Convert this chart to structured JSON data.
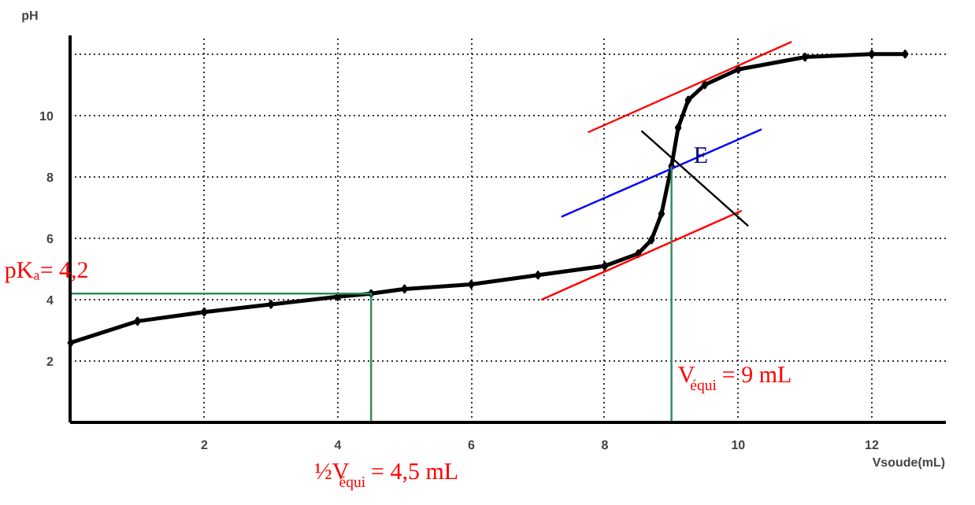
{
  "chart_data": {
    "type": "line",
    "xlabel": "Vsoude(mL)",
    "ylabel": "pH",
    "xlim": [
      0,
      13.1
    ],
    "ylim": [
      0,
      12.6
    ],
    "xticks": [
      2,
      4,
      6,
      8,
      10,
      12
    ],
    "yticks": [
      2,
      4,
      6,
      8,
      10,
      {
        "value": 12,
        "label": null
      }
    ],
    "grid": true,
    "marker": "diamond",
    "series": [
      {
        "color": "#000000",
        "x": [
          0,
          1,
          2,
          3,
          4,
          4.5,
          5,
          6,
          7,
          8,
          8.5,
          8.7,
          8.85,
          9,
          9.1,
          9.25,
          9.5,
          10,
          11,
          12,
          12.5
        ],
        "values": [
          2.6,
          3.3,
          3.6,
          3.85,
          4.1,
          4.2,
          4.35,
          4.5,
          4.8,
          5.1,
          5.5,
          5.95,
          6.8,
          8.35,
          9.6,
          10.5,
          11.0,
          11.5,
          11.9,
          12.0,
          12.0
        ]
      },
      {
        "color": "#ff0000",
        "type": "line",
        "marker": "none",
        "x": [
          7.75,
          10.8
        ],
        "values": [
          9.45,
          12.4
        ]
      },
      {
        "color": "#ff0000",
        "type": "line",
        "marker": "none",
        "x": [
          7.05,
          10.05
        ],
        "values": [
          4.0,
          6.9
        ]
      },
      {
        "color": "#0000ff",
        "type": "line",
        "marker": "none",
        "x": [
          7.35,
          10.35
        ],
        "values": [
          6.7,
          9.55
        ]
      },
      {
        "color": "#000000",
        "type": "line",
        "marker": "none",
        "x": [
          8.55,
          10.15
        ],
        "values": [
          9.5,
          6.4
        ]
      },
      {
        "color": "#2e8b57",
        "type": "line",
        "marker": "none",
        "x": [
          4.5,
          4.5,
          0
        ],
        "values": [
          0,
          4.2,
          4.2
        ]
      },
      {
        "color": "#2e8b57",
        "type": "line",
        "marker": "none",
        "x": [
          9,
          9
        ],
        "values": [
          8.35,
          0
        ]
      }
    ],
    "annotations": [
      {
        "text": "pKₐ= 4,2",
        "x": 0,
        "y": 4.2
      },
      {
        "text": "½V$_{équi}$= 4,5 mL",
        "x": 4.5,
        "y": 0
      },
      {
        "text": "V$_{équi}$= 9 mL",
        "x": 9,
        "y": 1
      },
      {
        "text": "E",
        "x": 9,
        "y": 8.35
      }
    ]
  }
}
